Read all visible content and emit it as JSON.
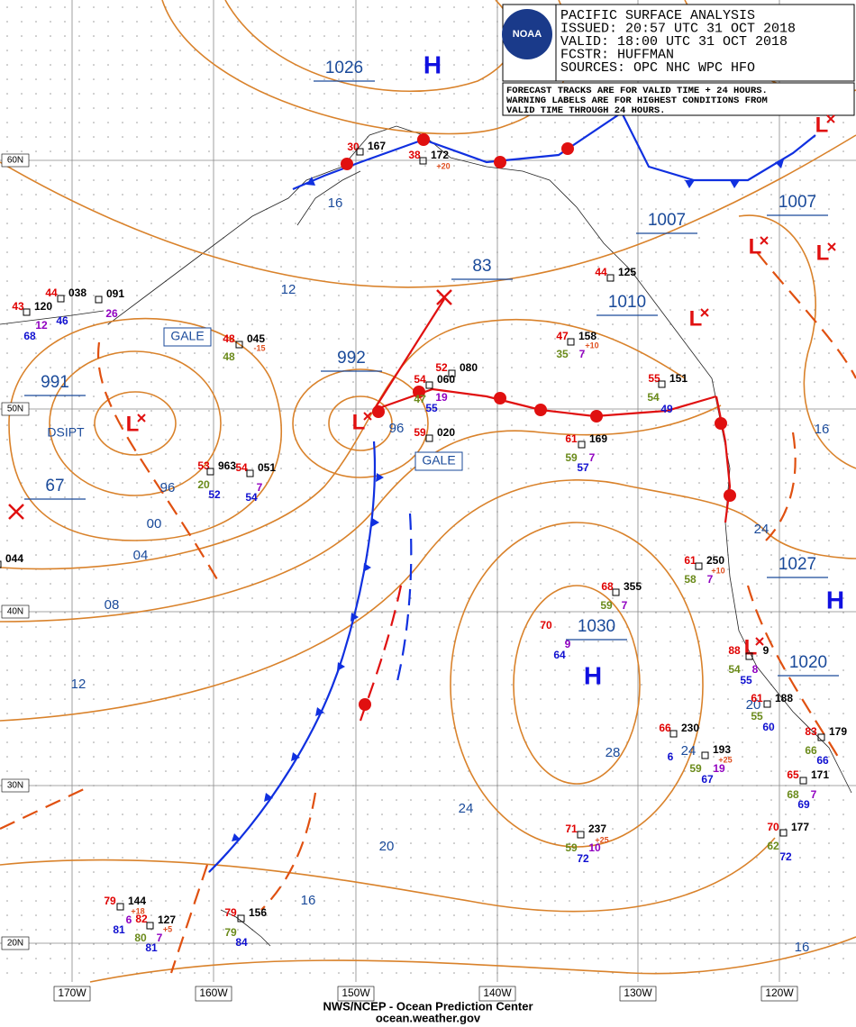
{
  "header": {
    "logo": "NOAA",
    "lines": [
      "PACIFIC SURFACE ANALYSIS",
      "ISSUED: 20:57 UTC 31 OCT 2018",
      "VALID:  18:00 UTC 31 OCT 2018",
      "FCSTR:  HUFFMAN",
      "SOURCES: OPC NHC WPC HFO"
    ]
  },
  "note": [
    "FORECAST TRACKS ARE FOR VALID TIME + 24 HOURS.",
    "WARNING LABELS ARE FOR HIGHEST CONDITIONS FROM",
    "VALID TIME THROUGH 24 HOURS."
  ],
  "lat_labels": [
    "60N",
    "50N",
    "40N",
    "30N",
    "20N"
  ],
  "lon_labels": [
    "170W",
    "160W",
    "150W",
    "140W",
    "130W",
    "120W"
  ],
  "pressure_labels": [
    "1026",
    "991",
    "67",
    "992",
    "83",
    "1007",
    "1007",
    "1010",
    "1030",
    "1027",
    "1020"
  ],
  "isobar_labels": [
    "16",
    "12",
    "96",
    "00",
    "04",
    "08",
    "12",
    "96",
    "24",
    "16",
    "28",
    "24",
    "20",
    "16",
    "24",
    "20",
    "16"
  ],
  "highs": [
    "H",
    "H",
    "H"
  ],
  "lows": [
    "L",
    "L",
    "L",
    "L",
    "L",
    "L",
    "L"
  ],
  "warnings": [
    "GALE",
    "GALE",
    "DSIPT"
  ],
  "stations": [
    [
      "30",
      "167"
    ],
    [
      "38",
      "172",
      "+20"
    ],
    [
      "43",
      "120",
      "12",
      "68"
    ],
    [
      "44",
      "038",
      "46",
      "26",
      "091"
    ],
    [
      "48",
      "045",
      "48",
      "-15"
    ],
    [
      "53",
      "963",
      "20",
      "52"
    ],
    [
      "54",
      "051",
      "7",
      "54"
    ],
    [
      "54",
      "47",
      "060",
      "19",
      "55"
    ],
    [
      "52",
      "080"
    ],
    [
      "59",
      "020"
    ],
    [
      "47",
      "158",
      "+10",
      "35",
      "7"
    ],
    [
      "44",
      "125"
    ],
    [
      "55",
      "151",
      "54",
      "49"
    ],
    [
      "61",
      "169",
      "59",
      "7",
      "57"
    ],
    [
      "61",
      "250",
      "+10",
      "58",
      "7"
    ],
    [
      "68",
      "355",
      "59",
      "7"
    ],
    [
      "70",
      "9",
      "64"
    ],
    [
      "66",
      "230",
      "6"
    ],
    [
      "193",
      "+25",
      "59",
      "19",
      "67"
    ],
    [
      "71",
      "237",
      "+25",
      "59",
      "10",
      "72"
    ],
    [
      "79",
      "144",
      "+18",
      "6",
      "81"
    ],
    [
      "82",
      "127",
      "+5",
      "80",
      "7",
      "81"
    ],
    [
      "79",
      "156",
      "79",
      "84"
    ],
    [
      "88",
      "9",
      "54",
      "8",
      "55"
    ],
    [
      "61",
      "188",
      "55",
      "60"
    ],
    [
      "83",
      "179",
      "66",
      "66"
    ],
    [
      "65",
      "171",
      "68",
      "7",
      "69"
    ],
    [
      "70",
      "177",
      "62",
      "72"
    ],
    [
      "044"
    ]
  ],
  "footer": {
    "agency": "NWS/NCEP - Ocean Prediction Center",
    "url": "ocean.weather.gov"
  }
}
